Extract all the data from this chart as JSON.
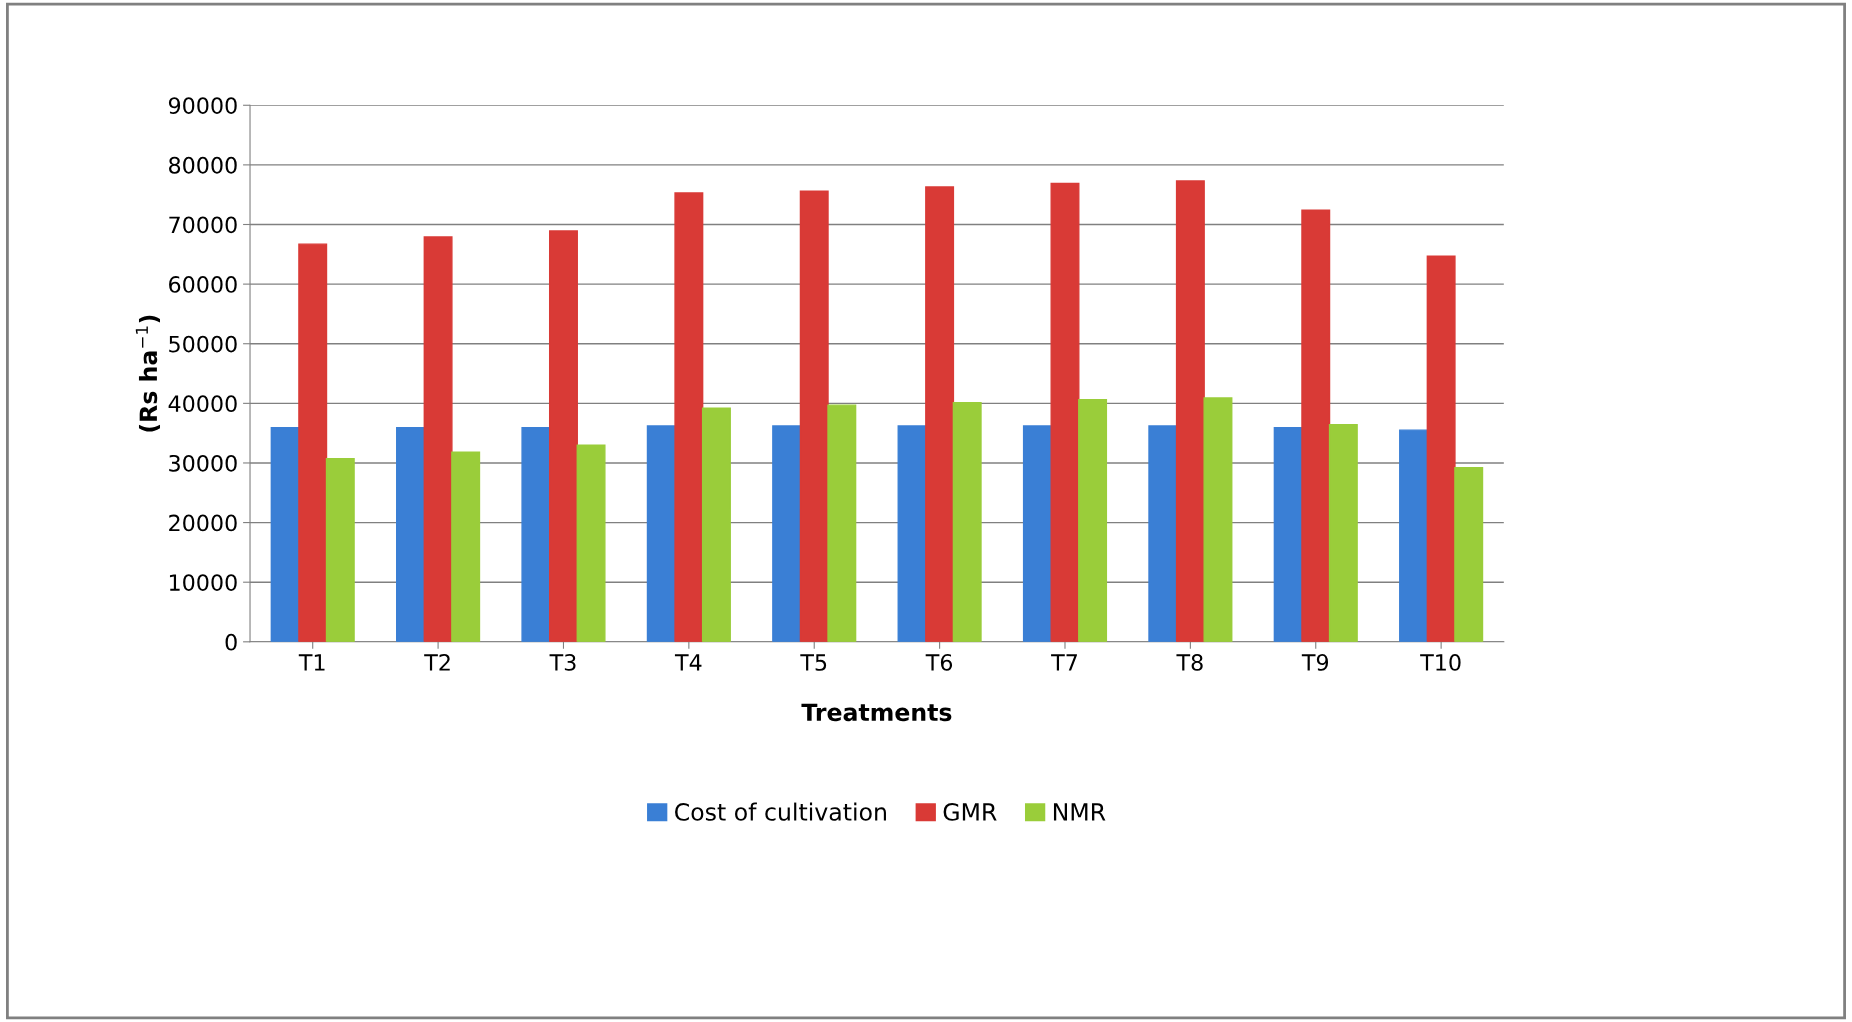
{
  "chart_data": {
    "type": "bar",
    "xlabel": "Treatments",
    "ylabel": "(Rs ha$^{−1}$)",
    "categories": [
      "T1",
      "T2",
      "T3",
      "T4",
      "T5",
      "T6",
      "T7",
      "T8",
      "T9",
      "T10"
    ],
    "series": [
      {
        "name": "Cost of cultivation",
        "color": "#3a7fd5",
        "values": [
          35900,
          35900,
          35900,
          36200,
          36200,
          36200,
          36200,
          36200,
          35900,
          35500
        ]
      },
      {
        "name": "GMR",
        "color": "#d93a36",
        "values": [
          66700,
          67900,
          68900,
          75300,
          75600,
          76300,
          76900,
          77300,
          72400,
          64700
        ]
      },
      {
        "name": "NMR",
        "color": "#9acd3a",
        "values": [
          30700,
          31800,
          33000,
          39200,
          39700,
          40100,
          40600,
          40900,
          36400,
          29200
        ]
      }
    ],
    "ylim": [
      0,
      90000
    ],
    "yticks": [
      0,
      10000,
      20000,
      30000,
      40000,
      50000,
      60000,
      70000,
      80000,
      90000
    ],
    "grid": "y",
    "legend": "bottom"
  }
}
